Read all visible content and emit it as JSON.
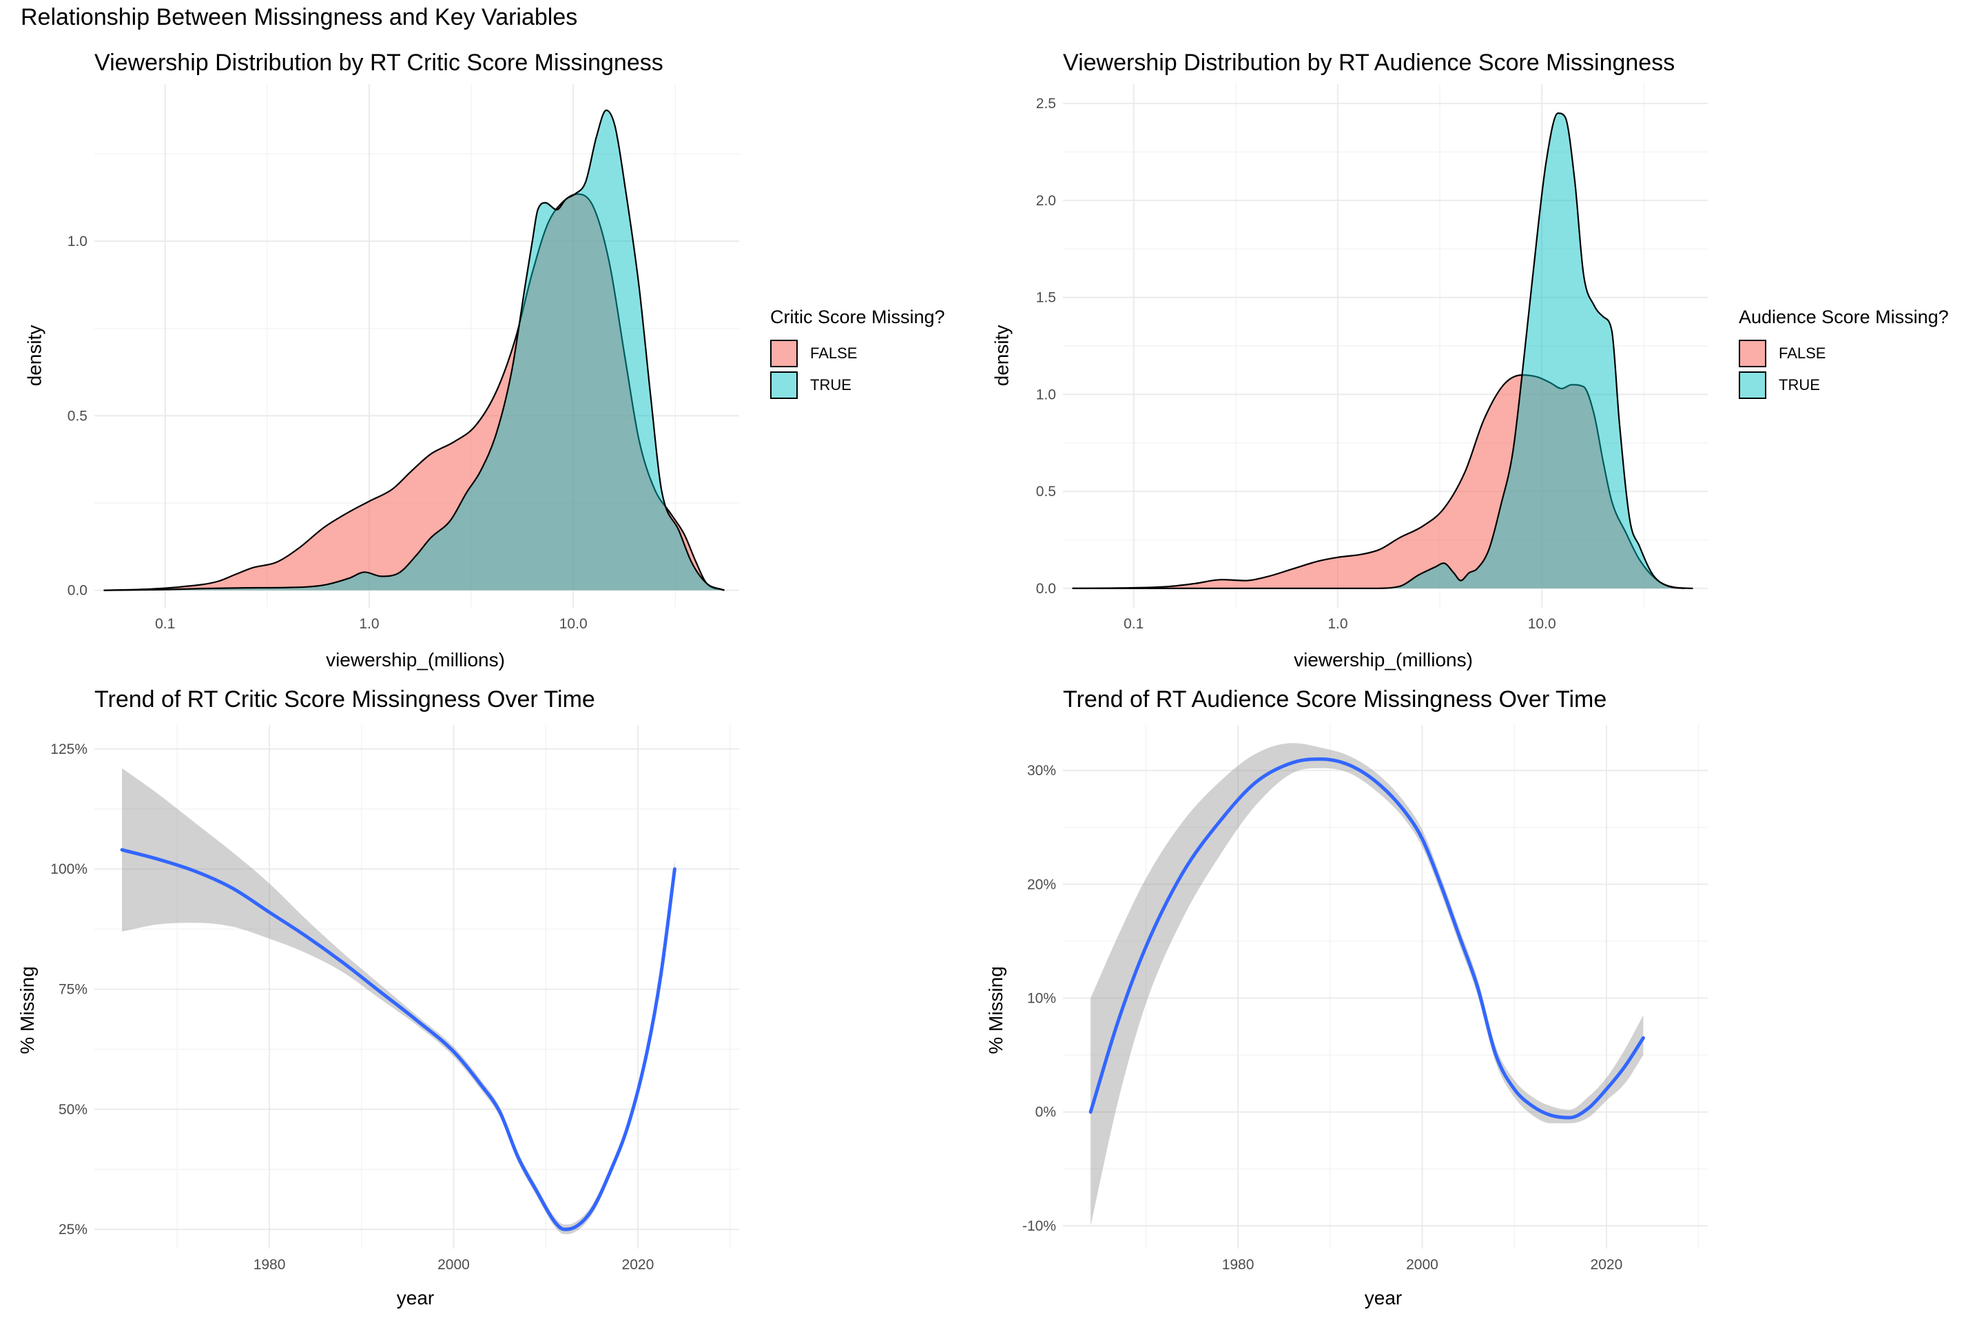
{
  "figure_title": "Relationship Between Missingness and Key Variables",
  "colors": {
    "false_fill": "#F8766D",
    "true_fill": "#00BFC4",
    "trend_line": "#3366FF",
    "ci_band": "#999999",
    "grid_major": "#EBEBEB",
    "grid_minor": "#F4F4F4"
  },
  "chart_data": [
    {
      "id": "critic_density",
      "type": "area",
      "title": "Viewership Distribution by RT Critic Score Missingness",
      "xlabel": "viewership_(millions)",
      "ylabel": "density",
      "x_scale": "log10",
      "xlim": [
        0.045,
        65
      ],
      "ylim": [
        -0.05,
        1.45
      ],
      "x_ticks": [
        0.1,
        1.0,
        10.0
      ],
      "x_tick_labels": [
        "0.1",
        "1.0",
        "10.0"
      ],
      "y_ticks": [
        0.0,
        0.5,
        1.0
      ],
      "y_tick_labels": [
        "0.0",
        "0.5",
        "1.0"
      ],
      "grid": true,
      "legend": {
        "title": "Critic Score Missing?",
        "position": "right"
      },
      "series": [
        {
          "name": "FALSE",
          "points": [
            [
              0.05,
              0
            ],
            [
              0.08,
              0.003
            ],
            [
              0.12,
              0.01
            ],
            [
              0.18,
              0.025
            ],
            [
              0.22,
              0.045
            ],
            [
              0.27,
              0.065
            ],
            [
              0.35,
              0.08
            ],
            [
              0.45,
              0.12
            ],
            [
              0.6,
              0.18
            ],
            [
              0.8,
              0.225
            ],
            [
              1.0,
              0.255
            ],
            [
              1.3,
              0.29
            ],
            [
              1.6,
              0.34
            ],
            [
              2.0,
              0.39
            ],
            [
              2.6,
              0.425
            ],
            [
              3.3,
              0.47
            ],
            [
              4.2,
              0.57
            ],
            [
              5.2,
              0.72
            ],
            [
              6.3,
              0.91
            ],
            [
              7.5,
              1.05
            ],
            [
              8.8,
              1.11
            ],
            [
              10.5,
              1.135
            ],
            [
              12.5,
              1.1
            ],
            [
              15,
              0.94
            ],
            [
              18,
              0.66
            ],
            [
              21,
              0.43
            ],
            [
              25,
              0.29
            ],
            [
              30,
              0.22
            ],
            [
              35,
              0.16
            ],
            [
              40,
              0.08
            ],
            [
              45,
              0.02
            ],
            [
              55,
              0
            ]
          ]
        },
        {
          "name": "TRUE",
          "points": [
            [
              0.05,
              0
            ],
            [
              0.1,
              0.002
            ],
            [
              0.15,
              0.005
            ],
            [
              0.25,
              0.007
            ],
            [
              0.4,
              0.008
            ],
            [
              0.6,
              0.015
            ],
            [
              0.8,
              0.035
            ],
            [
              0.95,
              0.052
            ],
            [
              1.15,
              0.04
            ],
            [
              1.4,
              0.05
            ],
            [
              1.7,
              0.1
            ],
            [
              2.0,
              0.15
            ],
            [
              2.5,
              0.2
            ],
            [
              3.0,
              0.28
            ],
            [
              3.5,
              0.34
            ],
            [
              4.2,
              0.45
            ],
            [
              5.0,
              0.63
            ],
            [
              5.8,
              0.87
            ],
            [
              6.3,
              1.0
            ],
            [
              6.7,
              1.09
            ],
            [
              7.3,
              1.11
            ],
            [
              8.3,
              1.09
            ],
            [
              9.2,
              1.12
            ],
            [
              10.2,
              1.135
            ],
            [
              11.5,
              1.17
            ],
            [
              13,
              1.3
            ],
            [
              14.5,
              1.375
            ],
            [
              16,
              1.33
            ],
            [
              18,
              1.15
            ],
            [
              21,
              0.87
            ],
            [
              24,
              0.55
            ],
            [
              27,
              0.29
            ],
            [
              33,
              0.17
            ],
            [
              38,
              0.08
            ],
            [
              45,
              0.02
            ],
            [
              55,
              0
            ]
          ]
        }
      ]
    },
    {
      "id": "audience_density",
      "type": "area",
      "title": "Viewership Distribution by RT Audience Score Missingness",
      "xlabel": "viewership_(millions)",
      "ylabel": "density",
      "x_scale": "log10",
      "xlim": [
        0.045,
        65
      ],
      "ylim": [
        -0.1,
        2.6
      ],
      "x_ticks": [
        0.1,
        1.0,
        10.0
      ],
      "x_tick_labels": [
        "0.1",
        "1.0",
        "10.0"
      ],
      "y_ticks": [
        0.0,
        0.5,
        1.0,
        1.5,
        2.0,
        2.5
      ],
      "y_tick_labels": [
        "0.0",
        "0.5",
        "1.0",
        "1.5",
        "2.0",
        "2.5"
      ],
      "grid": true,
      "legend": {
        "title": "Audience Score Missing?",
        "position": "right"
      },
      "series": [
        {
          "name": "FALSE",
          "points": [
            [
              0.05,
              0
            ],
            [
              0.1,
              0.003
            ],
            [
              0.15,
              0.01
            ],
            [
              0.2,
              0.025
            ],
            [
              0.27,
              0.045
            ],
            [
              0.35,
              0.04
            ],
            [
              0.45,
              0.06
            ],
            [
              0.6,
              0.1
            ],
            [
              0.8,
              0.14
            ],
            [
              1.0,
              0.16
            ],
            [
              1.3,
              0.175
            ],
            [
              1.6,
              0.2
            ],
            [
              2.0,
              0.26
            ],
            [
              2.6,
              0.32
            ],
            [
              3.3,
              0.41
            ],
            [
              4.2,
              0.6
            ],
            [
              5.2,
              0.87
            ],
            [
              6.5,
              1.05
            ],
            [
              8.0,
              1.1
            ],
            [
              9.5,
              1.09
            ],
            [
              11,
              1.06
            ],
            [
              12.5,
              1.03
            ],
            [
              14,
              1.05
            ],
            [
              16,
              1.04
            ],
            [
              18,
              0.9
            ],
            [
              20,
              0.65
            ],
            [
              22,
              0.45
            ],
            [
              26,
              0.28
            ],
            [
              30,
              0.15
            ],
            [
              37,
              0.04
            ],
            [
              45,
              0.005
            ],
            [
              55,
              0
            ]
          ]
        },
        {
          "name": "TRUE",
          "points": [
            [
              0.05,
              0
            ],
            [
              1.5,
              0
            ],
            [
              2.0,
              0.01
            ],
            [
              2.5,
              0.07
            ],
            [
              3.0,
              0.11
            ],
            [
              3.3,
              0.13
            ],
            [
              3.7,
              0.08
            ],
            [
              4.0,
              0.04
            ],
            [
              4.4,
              0.08
            ],
            [
              4.8,
              0.1
            ],
            [
              5.5,
              0.2
            ],
            [
              6.3,
              0.43
            ],
            [
              7.2,
              0.7
            ],
            [
              8.0,
              1.1
            ],
            [
              9.0,
              1.6
            ],
            [
              10.5,
              2.2
            ],
            [
              12.0,
              2.45
            ],
            [
              13,
              2.43
            ],
            [
              14.5,
              2.1
            ],
            [
              16,
              1.62
            ],
            [
              18,
              1.46
            ],
            [
              20,
              1.4
            ],
            [
              22,
              1.33
            ],
            [
              24,
              0.85
            ],
            [
              27,
              0.35
            ],
            [
              30,
              0.22
            ],
            [
              35,
              0.07
            ],
            [
              42,
              0.01
            ],
            [
              50,
              0
            ]
          ]
        }
      ]
    },
    {
      "id": "critic_trend",
      "type": "line",
      "title": "Trend of RT Critic Score Missingness Over Time",
      "xlabel": "year",
      "ylabel": "% Missing",
      "xlim": [
        1961,
        2031
      ],
      "ylim": [
        21,
        130
      ],
      "x_ticks": [
        1980,
        2000,
        2020
      ],
      "x_tick_labels": [
        "1980",
        "2000",
        "2020"
      ],
      "y_ticks": [
        25,
        50,
        75,
        100,
        125
      ],
      "y_tick_labels": [
        "25%",
        "50%",
        "75%",
        "100%",
        "125%"
      ],
      "grid": true,
      "series": [
        {
          "name": "",
          "points": [
            [
              1964,
              104
            ],
            [
              1968,
              102
            ],
            [
              1972,
              99.5
            ],
            [
              1976,
              96
            ],
            [
              1980,
              91
            ],
            [
              1984,
              86
            ],
            [
              1988,
              80.5
            ],
            [
              1992,
              74.5
            ],
            [
              1996,
              68.5
            ],
            [
              2000,
              62
            ],
            [
              2003,
              55
            ],
            [
              2005,
              49.5
            ],
            [
              2007,
              40
            ],
            [
              2009,
              33
            ],
            [
              2011,
              26.5
            ],
            [
              2012,
              25
            ],
            [
              2013,
              25.3
            ],
            [
              2015,
              29
            ],
            [
              2017,
              37
            ],
            [
              2019,
              47
            ],
            [
              2021,
              62
            ],
            [
              2022.5,
              78
            ],
            [
              2024,
              100
            ]
          ]
        }
      ],
      "ci_band": [
        [
          1964,
          87,
          121
        ],
        [
          1968,
          88.5,
          115.5
        ],
        [
          1972,
          88.8,
          109.5
        ],
        [
          1976,
          88,
          103.5
        ],
        [
          1980,
          85.5,
          97
        ],
        [
          1984,
          82.5,
          89.5
        ],
        [
          1988,
          78.5,
          82.5
        ],
        [
          1992,
          73,
          76
        ],
        [
          1996,
          67.5,
          69.5
        ],
        [
          2000,
          61,
          63
        ],
        [
          2003,
          54,
          56
        ],
        [
          2005,
          48.5,
          50.5
        ],
        [
          2007,
          39,
          41
        ],
        [
          2009,
          32,
          34
        ],
        [
          2011,
          25.5,
          27.5
        ],
        [
          2012,
          24,
          26
        ],
        [
          2013,
          24.3,
          26.3
        ],
        [
          2015,
          28,
          30
        ],
        [
          2017,
          36,
          38
        ],
        [
          2019,
          46,
          48
        ],
        [
          2021,
          61,
          63
        ],
        [
          2022.5,
          77,
          79
        ],
        [
          2024,
          99,
          102
        ]
      ]
    },
    {
      "id": "audience_trend",
      "type": "line",
      "title": "Trend of RT Audience Score Missingness Over Time",
      "xlabel": "year",
      "ylabel": "% Missing",
      "xlim": [
        1961,
        2031
      ],
      "ylim": [
        -12,
        34
      ],
      "x_ticks": [
        1980,
        2000,
        2020
      ],
      "x_tick_labels": [
        "1980",
        "2000",
        "2020"
      ],
      "y_ticks": [
        -10,
        0,
        10,
        20,
        30
      ],
      "y_tick_labels": [
        "-10%",
        "0%",
        "10%",
        "20%",
        "30%"
      ],
      "grid": true,
      "series": [
        {
          "name": "",
          "points": [
            [
              1964,
              0
            ],
            [
              1967,
              8
            ],
            [
              1970,
              14.5
            ],
            [
              1974,
              21
            ],
            [
              1978,
              25.5
            ],
            [
              1982,
              29
            ],
            [
              1986,
              30.7
            ],
            [
              1989,
              31
            ],
            [
              1992,
              30.5
            ],
            [
              1995,
              29
            ],
            [
              1998,
              26.5
            ],
            [
              2000,
              24
            ],
            [
              2002,
              20
            ],
            [
              2004,
              15.5
            ],
            [
              2006,
              11
            ],
            [
              2008,
              5
            ],
            [
              2010,
              2
            ],
            [
              2012,
              0.5
            ],
            [
              2014,
              -0.3
            ],
            [
              2016,
              -0.5
            ],
            [
              2018,
              0.3
            ],
            [
              2020,
              2
            ],
            [
              2022,
              4
            ],
            [
              2024,
              6.5
            ]
          ]
        }
      ],
      "ci_band": [
        [
          1964,
          -10,
          10
        ],
        [
          1967,
          1,
          15.5
        ],
        [
          1970,
          9.5,
          20.5
        ],
        [
          1974,
          17,
          25.5
        ],
        [
          1978,
          22.5,
          29
        ],
        [
          1982,
          27,
          31.5
        ],
        [
          1986,
          29.8,
          32.4
        ],
        [
          1989,
          30.2,
          32
        ],
        [
          1992,
          29.8,
          31.3
        ],
        [
          1995,
          28.2,
          29.8
        ],
        [
          1998,
          25.8,
          27.3
        ],
        [
          2000,
          23.3,
          24.8
        ],
        [
          2002,
          19.3,
          20.7
        ],
        [
          2004,
          14.8,
          16.2
        ],
        [
          2006,
          10.3,
          11.7
        ],
        [
          2008,
          4.3,
          5.7
        ],
        [
          2010,
          1.3,
          2.8
        ],
        [
          2012,
          -0.3,
          1.3
        ],
        [
          2014,
          -1,
          0.5
        ],
        [
          2016,
          -1,
          0.2
        ],
        [
          2018,
          -0.5,
          1.3
        ],
        [
          2020,
          1,
          3
        ],
        [
          2022,
          2.5,
          5.5
        ],
        [
          2024,
          5,
          8.5
        ]
      ]
    }
  ]
}
